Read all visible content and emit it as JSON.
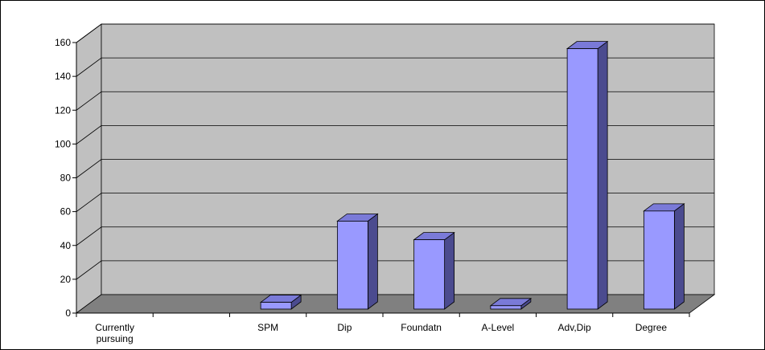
{
  "chart_data": {
    "type": "bar",
    "title": "",
    "xlabel": "",
    "ylabel": "",
    "categories": [
      [
        "Currently",
        "pursuing"
      ],
      [
        ""
      ],
      [
        "SPM"
      ],
      [
        "Dip"
      ],
      [
        "Foundatn"
      ],
      [
        "A-Level"
      ],
      [
        "Adv,Dip"
      ],
      [
        "Degree"
      ]
    ],
    "values": [
      0,
      0,
      4,
      52,
      41,
      2,
      154,
      58
    ],
    "ylim": [
      0,
      160
    ],
    "yticks": [
      0,
      20,
      40,
      60,
      80,
      100,
      120,
      140,
      160
    ],
    "grid": true,
    "legend": "none",
    "style": "3d-column",
    "colors": {
      "bar_front": "#9999FF",
      "bar_top": "#7A7AD8",
      "bar_side": "#4B4B8F",
      "wall": "#C0C0C0",
      "floor": "#808080",
      "gridline": "#000000"
    }
  }
}
